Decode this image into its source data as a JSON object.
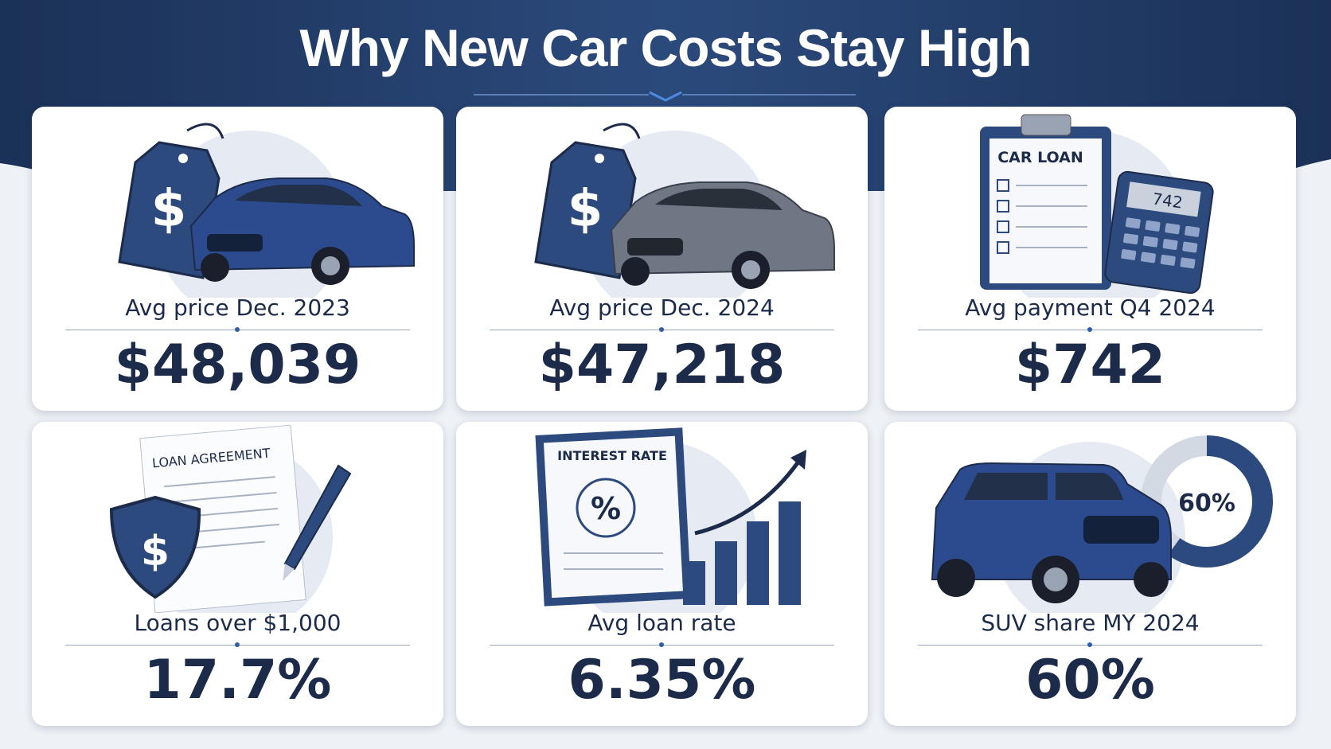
{
  "title": "Why New Car Costs Stay High",
  "cards": [
    {
      "label": "Avg price Dec. 2023",
      "value": "$48,039",
      "icon_text": [
        "$"
      ]
    },
    {
      "label": "Avg price Dec. 2024",
      "value": "$47,218",
      "icon_text": [
        "$"
      ]
    },
    {
      "label": "Avg payment Q4 2024",
      "value": "$742",
      "icon_text": [
        "CAR LOAN",
        "742"
      ]
    },
    {
      "label": "Loans over $1,000",
      "value": "17.7%",
      "icon_text": [
        "LOAN AGREEMENT",
        "$"
      ]
    },
    {
      "label": "Avg loan rate",
      "value": "6.35%",
      "icon_text": [
        "INTEREST RATE",
        "%"
      ]
    },
    {
      "label": "SUV share MY 2024",
      "value": "60%",
      "donut": {
        "value": 60,
        "label": "60%"
      }
    }
  ]
}
